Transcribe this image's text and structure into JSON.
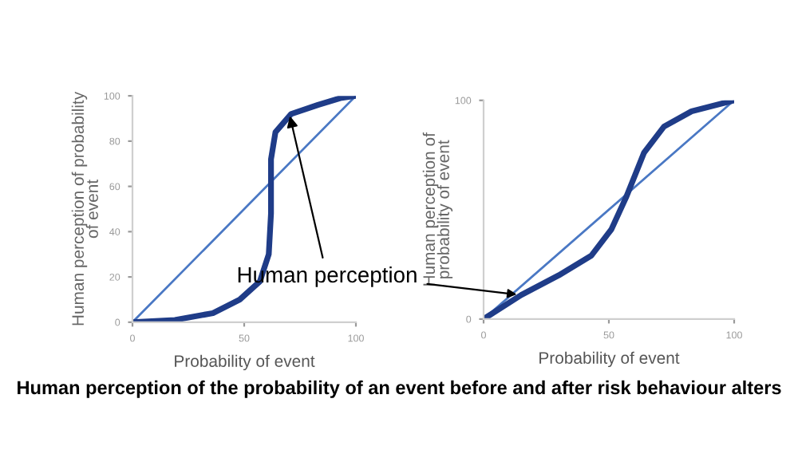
{
  "chart_data": [
    {
      "type": "line",
      "xlabel": "Probability of event",
      "ylabel": "Human perception of probability\nof event",
      "xlim": [
        0,
        100
      ],
      "ylim": [
        0,
        100
      ],
      "xticks": [
        0,
        50,
        100
      ],
      "yticks": [
        0,
        20,
        40,
        60,
        80,
        100
      ],
      "grid": false,
      "legend": false,
      "series": [
        {
          "color": "#4a78c4",
          "x": [
            0,
            100
          ],
          "values": [
            0,
            100
          ]
        },
        {
          "color": "#1f3c88",
          "x": [
            0,
            19,
            36,
            48,
            57,
            61,
            62,
            62,
            64,
            71,
            83,
            93,
            100
          ],
          "values": [
            0,
            1,
            4,
            10,
            18,
            30,
            48,
            72,
            84,
            92,
            96,
            99,
            100
          ]
        }
      ],
      "annotations": [
        {
          "text": "Human perception",
          "x": 70,
          "y": 93
        },
        "Human perception of the probability of an event before and after risk behaviour alters"
      ]
    },
    {
      "type": "line",
      "xlabel": "Probability of event",
      "ylabel": "Human perception of\nprobability of event",
      "xlim": [
        0,
        100
      ],
      "ylim": [
        0,
        100
      ],
      "xticks": [
        0,
        50,
        100
      ],
      "yticks": [
        0,
        100
      ],
      "grid": false,
      "legend": false,
      "series": [
        {
          "color": "#4a78c4",
          "x": [
            0,
            100
          ],
          "values": [
            0,
            100
          ]
        },
        {
          "color": "#1f3c88",
          "x": [
            0,
            15,
            30,
            43,
            51,
            57,
            64,
            72,
            83,
            100
          ],
          "values": [
            0,
            11,
            20,
            29,
            41,
            56,
            76,
            88,
            95,
            100
          ]
        }
      ]
    }
  ]
}
